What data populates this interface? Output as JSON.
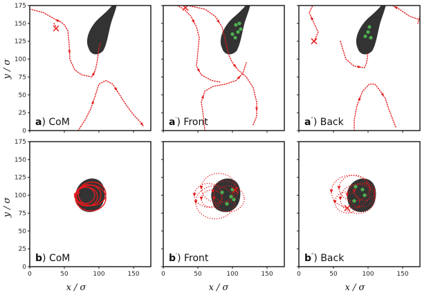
{
  "chart_data": {
    "type": "line",
    "x_axis": {
      "label": "x / σ",
      "ticks": [
        "0",
        "50",
        "100",
        "150"
      ],
      "lim": [
        0,
        175
      ]
    },
    "y_axis": {
      "label": "y / σ",
      "ticks": [
        "0",
        "25",
        "50",
        "75",
        "100",
        "125",
        "150",
        "175"
      ],
      "lim": [
        0,
        175
      ]
    },
    "colors": {
      "trajectory": "#e31a1c",
      "cell": "#333333",
      "marker": "#4caf50"
    },
    "panels": [
      {
        "id": "a",
        "letter": "a",
        "suffix": ") CoM",
        "row": 0,
        "col": 0,
        "cell_center": [
          100,
          125
        ],
        "cell_shape": "elongated",
        "trajectories": [
          {
            "style": "dotted",
            "points": [
              [
                0,
                170
              ],
              [
                20,
                165
              ],
              [
                38,
                155
              ],
              [
                45,
                152
              ],
              [
                50,
                148
              ],
              [
                55,
                140
              ],
              [
                57,
                120
              ],
              [
                58,
                100
              ],
              [
                65,
                85
              ],
              [
                75,
                78
              ],
              [
                90,
                75
              ],
              [
                95,
                85
              ],
              [
                98,
                100
              ],
              [
                100,
                115
              ],
              [
                102,
                122
              ]
            ]
          },
          {
            "style": "dotted",
            "points": [
              [
                35,
                150
              ],
              [
                38,
                145
              ]
            ]
          },
          {
            "style": "dotted",
            "points": [
              [
                70,
                0
              ],
              [
                80,
                15
              ],
              [
                88,
                30
              ],
              [
                95,
                50
              ],
              [
                100,
                65
              ],
              [
                110,
                70
              ],
              [
                120,
                65
              ],
              [
                130,
                50
              ],
              [
                140,
                35
              ],
              [
                150,
                22
              ],
              [
                160,
                12
              ],
              [
                165,
                5
              ]
            ]
          }
        ],
        "end_marker": [
          38,
          143
        ],
        "green_markers": []
      },
      {
        "id": "a1",
        "letter": "a",
        "suffix": ") Front",
        "row": 0,
        "col": 1,
        "cell_center": [
          100,
          125
        ],
        "cell_shape": "elongated",
        "trajectories": [
          {
            "style": "dotted",
            "points": [
              [
                20,
                175
              ],
              [
                30,
                170
              ],
              [
                40,
                160
              ],
              [
                48,
                145
              ],
              [
                52,
                130
              ],
              [
                50,
                110
              ],
              [
                48,
                90
              ],
              [
                55,
                78
              ],
              [
                70,
                70
              ],
              [
                82,
                68
              ]
            ]
          },
          {
            "style": "dotted",
            "points": [
              [
                35,
                175
              ],
              [
                60,
                170
              ],
              [
                75,
                160
              ],
              [
                85,
                145
              ],
              [
                90,
                125
              ],
              [
                95,
                105
              ],
              [
                100,
                95
              ],
              [
                108,
                85
              ],
              [
                120,
                75
              ],
              [
                130,
                60
              ],
              [
                135,
                40
              ],
              [
                135,
                20
              ],
              [
                130,
                8
              ]
            ]
          },
          {
            "style": "dotted",
            "points": [
              [
                60,
                0
              ],
              [
                58,
                20
              ],
              [
                55,
                40
              ],
              [
                60,
                55
              ],
              [
                72,
                62
              ],
              [
                90,
                65
              ],
              [
                105,
                70
              ],
              [
                115,
                80
              ],
              [
                120,
                95
              ]
            ]
          }
        ],
        "end_marker": [
          32,
          172
        ],
        "green_markers": [
          [
            104,
            130
          ],
          [
            108,
            138
          ],
          [
            112,
            142
          ],
          [
            110,
            150
          ],
          [
            105,
            148
          ],
          [
            100,
            135
          ]
        ]
      },
      {
        "id": "a2",
        "letter": "a",
        "suffix": ") Back",
        "row": 0,
        "col": 2,
        "cell_center": [
          100,
          125
        ],
        "cell_shape": "elongated",
        "trajectories": [
          {
            "style": "dotted",
            "points": [
              [
                22,
                125
              ],
              [
                28,
                138
              ],
              [
                22,
                150
              ],
              [
                15,
                165
              ],
              [
                20,
                175
              ]
            ]
          },
          {
            "style": "dotted",
            "points": [
              [
                175,
                155
              ],
              [
                160,
                160
              ],
              [
                145,
                170
              ],
              [
                135,
                175
              ]
            ]
          },
          {
            "style": "dotted",
            "points": [
              [
                175,
                160
              ],
              [
                172,
                150
              ]
            ]
          },
          {
            "style": "dotted",
            "points": [
              [
                80,
                0
              ],
              [
                80,
                15
              ],
              [
                84,
                35
              ],
              [
                92,
                55
              ],
              [
                102,
                65
              ],
              [
                110,
                65
              ],
              [
                118,
                55
              ],
              [
                125,
                45
              ],
              [
                130,
                30
              ],
              [
                136,
                15
              ],
              [
                140,
                5
              ]
            ]
          },
          {
            "style": "dotted",
            "points": [
              [
                60,
                125
              ],
              [
                68,
                100
              ],
              [
                80,
                90
              ],
              [
                95,
                88
              ],
              [
                98,
                95
              ],
              [
                100,
                110
              ]
            ]
          }
        ],
        "end_marker": [
          22,
          125
        ],
        "green_markers": [
          [
            100,
            138
          ],
          [
            104,
            130
          ],
          [
            96,
            132
          ],
          [
            102,
            145
          ]
        ]
      },
      {
        "id": "b",
        "letter": "b",
        "suffix": ") CoM",
        "row": 1,
        "col": 0,
        "cell_center": [
          85,
          100
        ],
        "cell_shape": "round",
        "trajectories": [
          {
            "style": "solid",
            "loops": [
              [
                85,
                100,
                18
              ],
              [
                90,
                102,
                20
              ],
              [
                82,
                98,
                16
              ],
              [
                88,
                96,
                22
              ],
              [
                80,
                100,
                14
              ]
            ]
          }
        ],
        "end_marker": null,
        "green_markers": []
      },
      {
        "id": "b1",
        "letter": "b",
        "suffix": ") Front",
        "row": 1,
        "col": 1,
        "cell_center": [
          88,
          100
        ],
        "cell_shape": "round",
        "trajectories": [
          {
            "style": "dotted",
            "loops": [
              [
                80,
                110,
                25
              ],
              [
                65,
                100,
                20
              ],
              [
                75,
                90,
                28
              ],
              [
                90,
                105,
                18
              ],
              [
                70,
                95,
                15
              ],
              [
                95,
                95,
                22
              ]
            ]
          }
        ],
        "end_marker": [
          104,
          107
        ],
        "green_markers": [
          [
            100,
            108
          ],
          [
            98,
            98
          ],
          [
            92,
            88
          ],
          [
            102,
            94
          ],
          [
            85,
            104
          ]
        ]
      },
      {
        "id": "b2",
        "letter": "b",
        "suffix": ") Back",
        "row": 1,
        "col": 2,
        "cell_center": [
          88,
          100
        ],
        "cell_shape": "round",
        "trajectories": [
          {
            "style": "dotted",
            "loops": [
              [
                75,
                105,
                28
              ],
              [
                80,
                110,
                22
              ],
              [
                90,
                100,
                20
              ],
              [
                70,
                90,
                18
              ],
              [
                85,
                95,
                25
              ],
              [
                95,
                105,
                15
              ]
            ]
          }
        ],
        "end_marker": [
          70,
          82
        ],
        "green_markers": [
          [
            82,
            112
          ],
          [
            92,
            108
          ],
          [
            95,
            100
          ],
          [
            80,
            92
          ]
        ]
      }
    ]
  }
}
